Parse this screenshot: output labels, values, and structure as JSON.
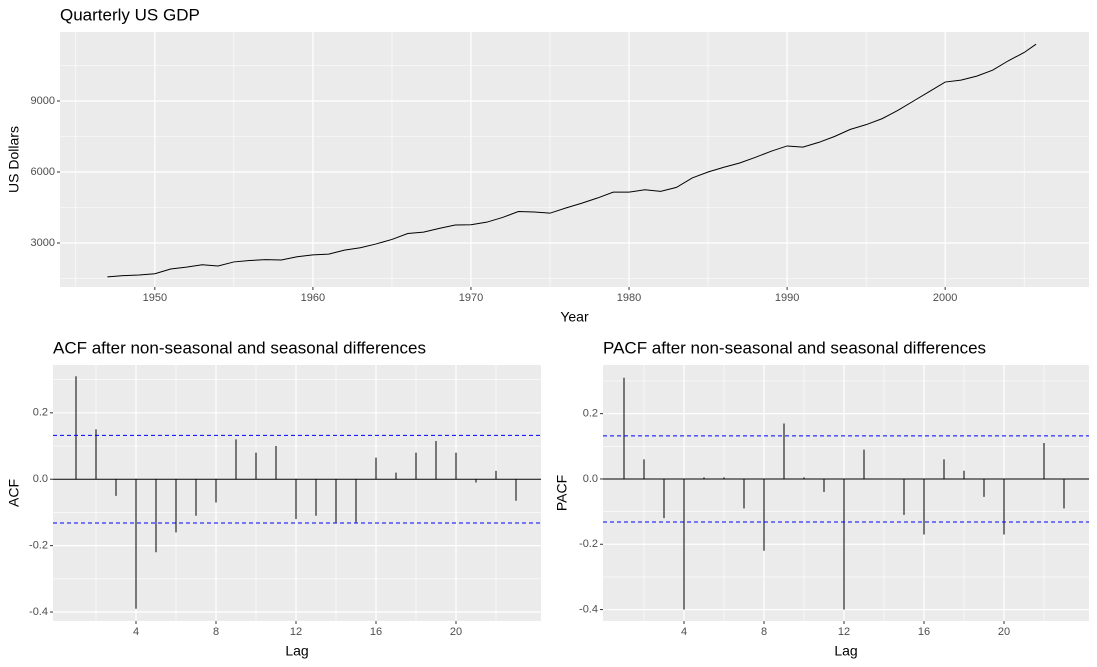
{
  "chart_data": [
    {
      "type": "line",
      "title": "Quarterly US GDP",
      "x_label": "Year",
      "y_label": "US Dollars",
      "x": [
        1947,
        1948,
        1949,
        1950,
        1951,
        1952,
        1953,
        1954,
        1955,
        1956,
        1957,
        1958,
        1959,
        1960,
        1961,
        1962,
        1963,
        1964,
        1965,
        1966,
        1967,
        1968,
        1969,
        1970,
        1971,
        1972,
        1973,
        1974,
        1975,
        1976,
        1977,
        1978,
        1979,
        1980,
        1981,
        1982,
        1983,
        1984,
        1985,
        1986,
        1987,
        1988,
        1989,
        1990,
        1991,
        1992,
        1993,
        1994,
        1995,
        1996,
        1997,
        1998,
        1999,
        2000,
        2001,
        2002,
        2003,
        2004,
        2005,
        2005.75
      ],
      "series": [
        {
          "name": "GDP",
          "color": "#000000",
          "values": [
            1570,
            1620,
            1650,
            1700,
            1900,
            1980,
            2080,
            2030,
            2200,
            2260,
            2300,
            2280,
            2420,
            2500,
            2530,
            2700,
            2800,
            2960,
            3150,
            3400,
            3460,
            3620,
            3760,
            3770,
            3880,
            4080,
            4330,
            4310,
            4260,
            4480,
            4680,
            4900,
            5150,
            5150,
            5250,
            5180,
            5350,
            5750,
            6000,
            6200,
            6380,
            6620,
            6880,
            7100,
            7050,
            7250,
            7500,
            7800,
            8000,
            8250,
            8600,
            9000,
            9400,
            9800,
            9880,
            10050,
            10300,
            10700,
            11050,
            11400
          ]
        }
      ],
      "xlim": [
        1944.0,
        2009.1
      ],
      "ylim": [
        1141,
        11915
      ],
      "xticks": [
        1950,
        1960,
        1970,
        1980,
        1990,
        2000
      ],
      "yticks": [
        3000,
        6000,
        9000
      ],
      "grid": true
    },
    {
      "type": "acf",
      "title": "ACF after non-seasonal and seasonal differences",
      "x_label": "Lag",
      "y_label": "ACF",
      "x": [
        1,
        2,
        3,
        4,
        5,
        6,
        7,
        8,
        9,
        10,
        11,
        12,
        13,
        14,
        15,
        16,
        17,
        18,
        19,
        20,
        21,
        22,
        23
      ],
      "series": [
        {
          "name": "ACF",
          "color": "#000000",
          "values": [
            0.31,
            0.15,
            -0.05,
            -0.39,
            -0.22,
            -0.16,
            -0.11,
            -0.07,
            0.12,
            0.08,
            0.1,
            -0.12,
            -0.11,
            -0.13,
            -0.13,
            0.065,
            0.02,
            0.08,
            0.115,
            0.08,
            -0.01,
            0.025,
            -0.065
          ]
        }
      ],
      "ci": [
        -0.132,
        0.132
      ],
      "ci_color": "#0000ff",
      "xlim": [
        -0.15,
        24.25
      ],
      "ylim": [
        -0.427,
        0.344
      ],
      "xticks": [
        4,
        8,
        12,
        16,
        20
      ],
      "yticks": [
        -0.4,
        -0.2,
        {
          "value": 0,
          "label": "0.0"
        },
        0.2
      ],
      "grid": true
    },
    {
      "type": "acf",
      "title": "PACF after non-seasonal and seasonal differences",
      "x_label": "Lag",
      "y_label": "PACF",
      "x": [
        1,
        2,
        3,
        4,
        5,
        6,
        7,
        8,
        9,
        10,
        11,
        12,
        13,
        14,
        15,
        16,
        17,
        18,
        19,
        20,
        21,
        22,
        23
      ],
      "series": [
        {
          "name": "PACF",
          "color": "#000000",
          "values": [
            0.31,
            0.06,
            -0.12,
            -0.4,
            0.005,
            0.005,
            -0.09,
            -0.22,
            0.17,
            0.005,
            -0.04,
            -0.4,
            0.09,
            0,
            -0.11,
            -0.17,
            0.06,
            0.025,
            -0.055,
            -0.17,
            0,
            0.11,
            -0.09
          ]
        }
      ],
      "ci": [
        -0.132,
        0.132
      ],
      "ci_color": "#0000ff",
      "xlim": [
        -0.05,
        24.25
      ],
      "ylim": [
        -0.435,
        0.349
      ],
      "xticks": [
        4,
        8,
        12,
        16,
        20
      ],
      "yticks": [
        -0.4,
        -0.2,
        {
          "value": 0,
          "label": "0.0"
        },
        0.2
      ],
      "grid": true
    }
  ]
}
